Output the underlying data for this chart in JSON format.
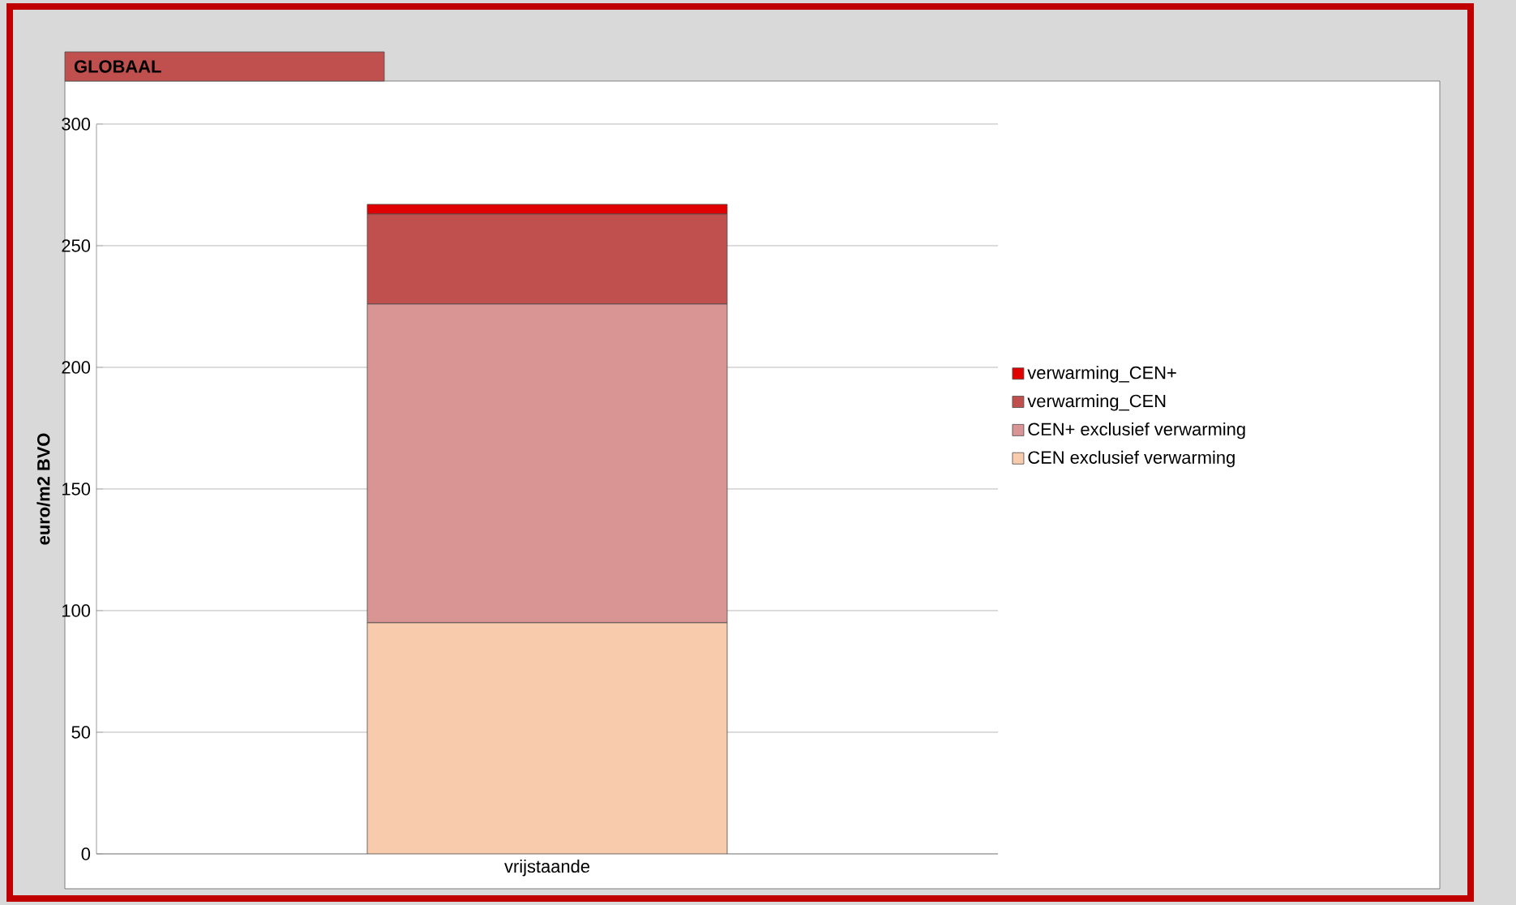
{
  "chart_data": {
    "type": "bar",
    "title": "GLOBAAL",
    "ylabel": "euro/m2 BVO",
    "stacked": true,
    "categories": [
      "vrijstaande"
    ],
    "series": [
      {
        "name": "CEN exclusief verwarming",
        "color": "#f8cbad",
        "values": [
          95
        ]
      },
      {
        "name": "CEN+  exclusief verwarming",
        "color": "#d99594",
        "values": [
          131
        ]
      },
      {
        "name": "verwarming_CEN",
        "color": "#c0504d",
        "values": [
          37
        ]
      },
      {
        "name": "verwarming_CEN+",
        "color": "#e00000",
        "values": [
          4
        ]
      }
    ],
    "ylim": [
      0,
      300
    ],
    "yticks": [
      0,
      50,
      100,
      150,
      200,
      250,
      300
    ],
    "grid": "y",
    "legend": "right"
  }
}
